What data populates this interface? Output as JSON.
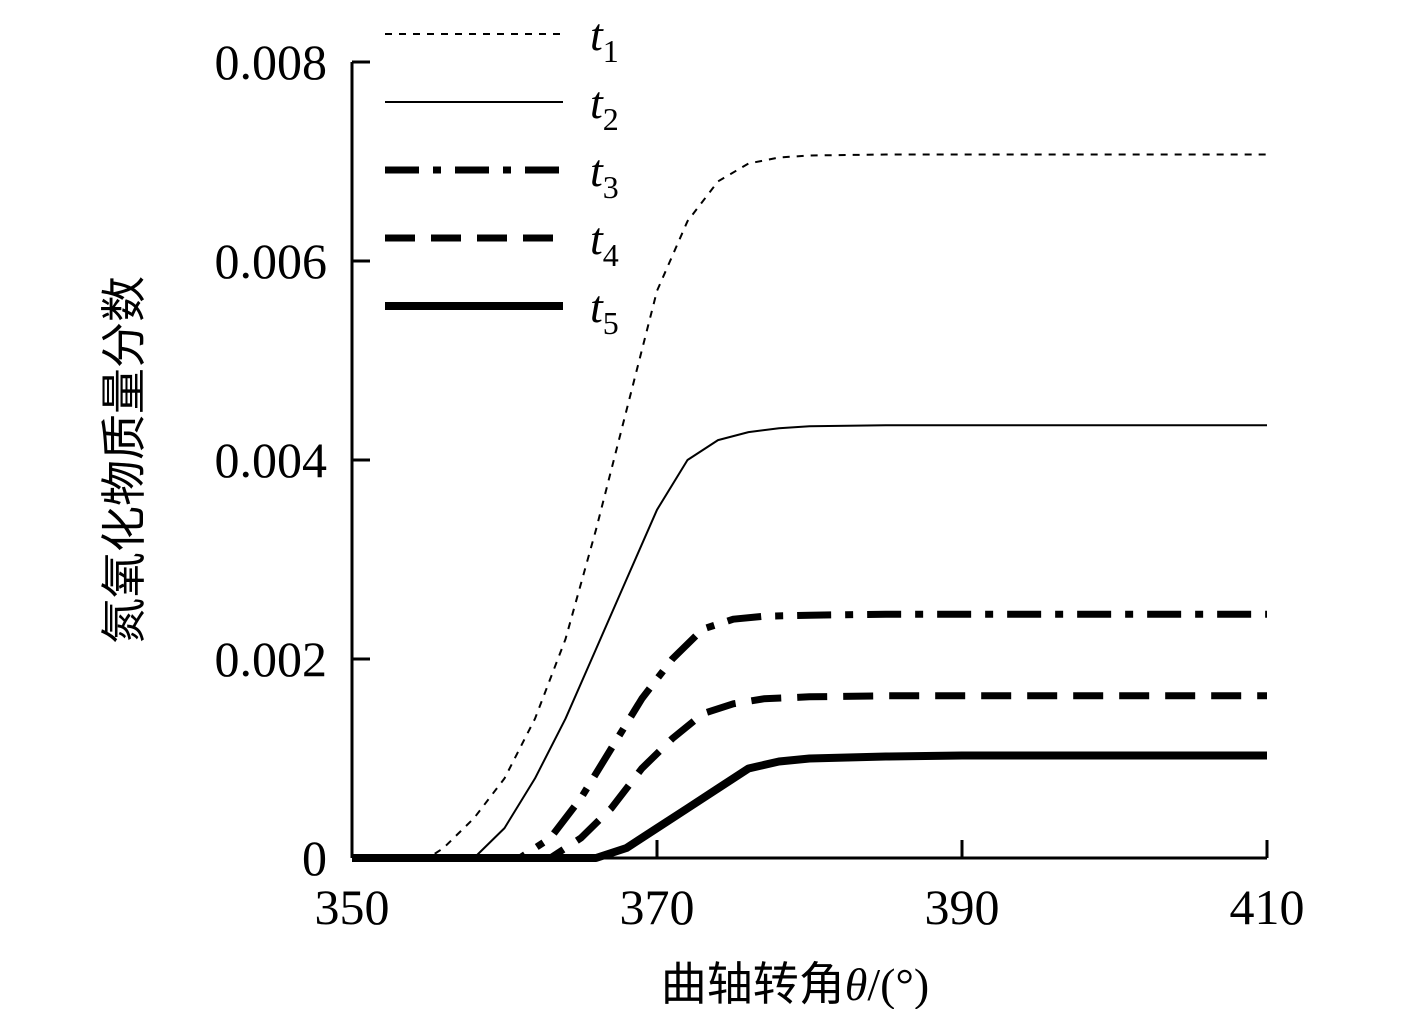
{
  "chart_data": {
    "type": "line",
    "xlabel_main": "曲轴转角",
    "xlabel_symbol": "θ",
    "xlabel_unit": "/(°)",
    "ylabel": "氮氧化物质量分数",
    "xlim": [
      350,
      410
    ],
    "ylim": [
      0,
      0.008
    ],
    "xticks": [
      350,
      370,
      390,
      410
    ],
    "xtick_labels": [
      "350",
      "370",
      "390",
      "410"
    ],
    "yticks": [
      0,
      0.002,
      0.004,
      0.006,
      0.008
    ],
    "ytick_labels": [
      "0",
      "0.002",
      "0.004",
      "0.006",
      "0.008"
    ],
    "grid": false,
    "legend_position": "top-left",
    "series": [
      {
        "name": "t1",
        "label_main": "t",
        "label_sub": "1",
        "style": "fine-dashed",
        "x": [
          350,
          355,
          356,
          358,
          360,
          362,
          364,
          366,
          368,
          370,
          372,
          374,
          376,
          378,
          380,
          385,
          390,
          400,
          410
        ],
        "y": [
          0,
          0,
          0.0001,
          0.0004,
          0.0008,
          0.0014,
          0.0022,
          0.0033,
          0.0045,
          0.0057,
          0.0064,
          0.0068,
          0.00698,
          0.00704,
          0.00706,
          0.00707,
          0.00707,
          0.00707,
          0.00707
        ]
      },
      {
        "name": "t2",
        "label_main": "t",
        "label_sub": "2",
        "style": "solid-thin",
        "x": [
          350,
          358,
          360,
          362,
          364,
          366,
          368,
          370,
          372,
          374,
          376,
          378,
          380,
          385,
          390,
          400,
          410
        ],
        "y": [
          0,
          0,
          0.0003,
          0.0008,
          0.0014,
          0.0021,
          0.0028,
          0.0035,
          0.004,
          0.0042,
          0.00428,
          0.00432,
          0.00434,
          0.00435,
          0.00435,
          0.00435,
          0.00435
        ]
      },
      {
        "name": "t3",
        "label_main": "t",
        "label_sub": "3",
        "style": "dash-dot-thick",
        "x": [
          350,
          361,
          363,
          365,
          367,
          369,
          371,
          373,
          375,
          377,
          380,
          385,
          390,
          400,
          410
        ],
        "y": [
          0,
          0,
          0.0002,
          0.0006,
          0.0011,
          0.0016,
          0.002,
          0.0023,
          0.0024,
          0.00243,
          0.00244,
          0.00245,
          0.00245,
          0.00245,
          0.00245
        ]
      },
      {
        "name": "t4",
        "label_main": "t",
        "label_sub": "4",
        "style": "dashed-thick",
        "x": [
          350,
          363,
          365,
          367,
          369,
          371,
          373,
          375,
          377,
          380,
          385,
          390,
          400,
          410
        ],
        "y": [
          0,
          0,
          0.0002,
          0.0005,
          0.0009,
          0.0012,
          0.00145,
          0.00155,
          0.0016,
          0.00162,
          0.00163,
          0.00163,
          0.00163,
          0.00163
        ]
      },
      {
        "name": "t5",
        "label_main": "t",
        "label_sub": "5",
        "style": "solid-thick",
        "x": [
          350,
          366,
          368,
          370,
          372,
          374,
          376,
          378,
          380,
          385,
          390,
          400,
          410
        ],
        "y": [
          0,
          0,
          0.0001,
          0.0003,
          0.0005,
          0.0007,
          0.0009,
          0.00097,
          0.001,
          0.00102,
          0.00103,
          0.00103,
          0.00103
        ]
      }
    ]
  }
}
